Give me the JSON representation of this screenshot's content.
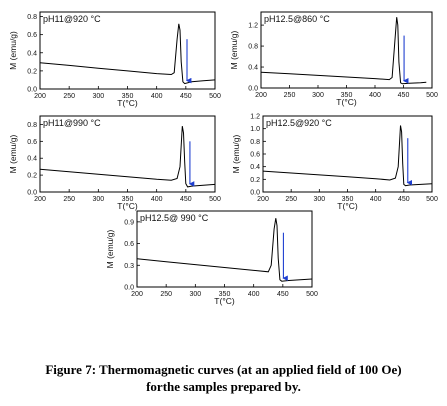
{
  "caption": {
    "line1": "Figure 7: Thermomagnetic curves (at an applied field of 100 Oe)",
    "line2": "forthe samples prepared by."
  },
  "colors": {
    "curve": "#000000",
    "arrow": "#1f3fd0",
    "axis": "#000000"
  },
  "chart_data": [
    {
      "type": "line",
      "label": "pH11@920 °C",
      "xlabel": "T(°C)",
      "ylabel": "M (emu/g)",
      "xlim": [
        200,
        500
      ],
      "ylim": [
        0.0,
        0.85
      ],
      "xticks": [
        "200",
        "250",
        "300",
        "350",
        "400",
        "450",
        "500"
      ],
      "yticks": [
        "0.0",
        "0.2",
        "0.4",
        "0.6",
        "0.8"
      ],
      "ytick_values": [
        0.0,
        0.2,
        0.4,
        0.6,
        0.8
      ],
      "x": [
        200,
        250,
        300,
        350,
        400,
        425,
        430,
        435,
        438,
        440,
        442,
        445,
        448,
        460,
        480,
        500
      ],
      "y": [
        0.29,
        0.26,
        0.23,
        0.2,
        0.17,
        0.16,
        0.18,
        0.55,
        0.72,
        0.65,
        0.3,
        0.08,
        0.06,
        0.08,
        0.09,
        0.1
      ],
      "arrow": {
        "x": 452,
        "y_from": 0.55,
        "y_to": 0.06
      }
    },
    {
      "type": "line",
      "label": "pH12.5@860 °C",
      "xlabel": "T(°C)",
      "ylabel": "M (emu/g)",
      "xlim": [
        200,
        500
      ],
      "ylim": [
        0.0,
        1.45
      ],
      "xticks": [
        "200",
        "250",
        "300",
        "350",
        "400",
        "450",
        "500"
      ],
      "yticks": [
        "0.0",
        "0.4",
        "0.8",
        "1.2"
      ],
      "ytick_values": [
        0.0,
        0.4,
        0.8,
        1.2
      ],
      "x": [
        200,
        250,
        300,
        350,
        400,
        425,
        430,
        435,
        438,
        440,
        442,
        445,
        448,
        460,
        480,
        490
      ],
      "y": [
        0.3,
        0.27,
        0.24,
        0.21,
        0.18,
        0.16,
        0.2,
        0.9,
        1.35,
        1.2,
        0.5,
        0.1,
        0.08,
        0.09,
        0.1,
        0.11
      ],
      "arrow": {
        "x": 451,
        "y_from": 1.0,
        "y_to": 0.08
      }
    },
    {
      "type": "line",
      "label": "pH11@990 °C",
      "xlabel": "T(°C)",
      "ylabel": "M (emu/g)",
      "xlim": [
        200,
        500
      ],
      "ylim": [
        0.0,
        0.9
      ],
      "xticks": [
        "200",
        "250",
        "300",
        "350",
        "400",
        "450",
        "500"
      ],
      "yticks": [
        "0.0",
        "0.2",
        "0.4",
        "0.6",
        "0.8"
      ],
      "ytick_values": [
        0.0,
        0.2,
        0.4,
        0.6,
        0.8
      ],
      "x": [
        200,
        250,
        300,
        350,
        400,
        425,
        435,
        440,
        444,
        446,
        448,
        450,
        453,
        460,
        480,
        500
      ],
      "y": [
        0.27,
        0.24,
        0.21,
        0.18,
        0.15,
        0.14,
        0.16,
        0.3,
        0.78,
        0.7,
        0.35,
        0.1,
        0.06,
        0.07,
        0.08,
        0.09
      ],
      "arrow": {
        "x": 457,
        "y_from": 0.6,
        "y_to": 0.06
      }
    },
    {
      "type": "line",
      "label": "pH12.5@920 °C",
      "xlabel": "T(°C)",
      "ylabel": "M (emu/g)",
      "xlim": [
        200,
        500
      ],
      "ylim": [
        0.0,
        1.2
      ],
      "xticks": [
        "200",
        "250",
        "300",
        "350",
        "400",
        "450",
        "500"
      ],
      "yticks": [
        "0.0",
        "0.2",
        "0.4",
        "0.6",
        "0.8",
        "1.0",
        "1.2"
      ],
      "ytick_values": [
        0.0,
        0.2,
        0.4,
        0.6,
        0.8,
        1.0,
        1.2
      ],
      "x": [
        200,
        250,
        300,
        350,
        400,
        425,
        435,
        440,
        444,
        446,
        448,
        450,
        453,
        460,
        480,
        500
      ],
      "y": [
        0.33,
        0.3,
        0.27,
        0.24,
        0.21,
        0.19,
        0.22,
        0.4,
        1.05,
        0.95,
        0.45,
        0.12,
        0.1,
        0.11,
        0.12,
        0.13
      ],
      "arrow": {
        "x": 457,
        "y_from": 0.85,
        "y_to": 0.1
      }
    },
    {
      "type": "line",
      "label": "pH12.5@ 990 °C",
      "xlabel": "T(°C)",
      "ylabel": "M (emu/g)",
      "xlim": [
        200,
        500
      ],
      "ylim": [
        0.0,
        1.05
      ],
      "xticks": [
        "200",
        "250",
        "300",
        "350",
        "400",
        "450",
        "500"
      ],
      "yticks": [
        "0.0",
        "0.3",
        "0.6",
        "0.9"
      ],
      "ytick_values": [
        0.0,
        0.3,
        0.6,
        0.9
      ],
      "x": [
        200,
        250,
        300,
        350,
        400,
        425,
        430,
        435,
        438,
        440,
        442,
        445,
        448,
        460,
        480,
        500
      ],
      "y": [
        0.39,
        0.35,
        0.31,
        0.27,
        0.23,
        0.21,
        0.3,
        0.8,
        0.95,
        0.85,
        0.4,
        0.1,
        0.08,
        0.09,
        0.1,
        0.11
      ],
      "arrow": {
        "x": 451,
        "y_from": 0.75,
        "y_to": 0.08
      }
    }
  ]
}
